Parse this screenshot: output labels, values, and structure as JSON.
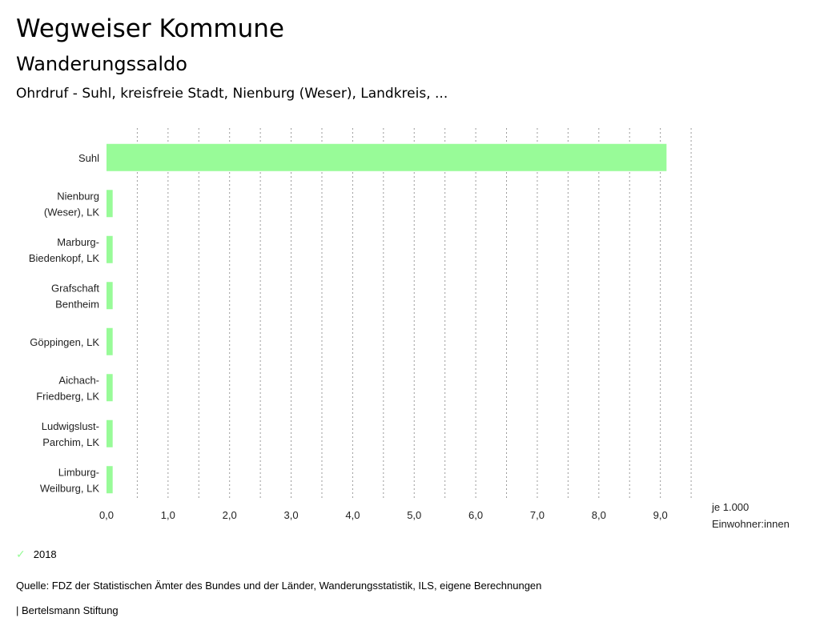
{
  "header": {
    "title": "Wegweiser Kommune",
    "subtitle": "Wanderungssaldo",
    "filter": "Ohrdruf - Suhl, kreisfreie Stadt, Nienburg (Weser), Landkreis, ..."
  },
  "chart_data": {
    "type": "bar",
    "orientation": "horizontal",
    "categories": [
      [
        "Suhl"
      ],
      [
        "Nienburg",
        "(Weser), LK"
      ],
      [
        "Marburg-",
        "Biedenkopf, LK"
      ],
      [
        "Grafschaft",
        "Bentheim"
      ],
      [
        "Göppingen, LK"
      ],
      [
        "Aichach-",
        "Friedberg, LK"
      ],
      [
        "Ludwigslust-",
        "Parchim, LK"
      ],
      [
        "Limburg-",
        "Weilburg, LK"
      ]
    ],
    "series": [
      {
        "name": "2018",
        "values": [
          9.1,
          0.1,
          0.1,
          0.1,
          0.1,
          0.1,
          0.1,
          0.1
        ]
      }
    ],
    "xlim": [
      0,
      9.5
    ],
    "xticks": [
      "0,0",
      "1,0",
      "2,0",
      "3,0",
      "4,0",
      "5,0",
      "6,0",
      "7,0",
      "8,0",
      "9,0"
    ],
    "xlabel": [
      "je 1.000",
      "Einwohner:innen"
    ],
    "grid": true,
    "bar_color": "#98fb98",
    "legend_position": "bottom-left"
  },
  "legend": {
    "icon": "check-icon",
    "label": "2018",
    "color": "#98fb98"
  },
  "source": "Quelle: FDZ der Statistischen Ämter des Bundes und der Länder, Wanderungsstatistik, ILS, eigene Berechnungen",
  "footer": "| Bertelsmann Stiftung"
}
